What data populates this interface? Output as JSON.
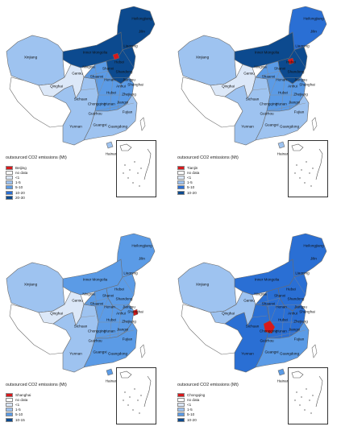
{
  "panels": [
    {
      "id": "beijing",
      "legend_title": "outsourced CO2 emissions (Mt)",
      "legend": [
        {
          "label": "Beijing",
          "color": "#d7191c"
        },
        {
          "label": "no data",
          "color": "#ffffff"
        },
        {
          "label": "<1",
          "color": "#dce8f8"
        },
        {
          "label": "1-5",
          "color": "#9ec3f0"
        },
        {
          "label": "5-10",
          "color": "#5b9be6"
        },
        {
          "label": "10-20",
          "color": "#2a6fd4"
        },
        {
          "label": "20-30",
          "color": "#0c4a8f"
        }
      ],
      "northeast_color": "#0c4a8f",
      "north_color": "#0c4a8f",
      "centre_color": "#5b9be6",
      "south_color": "#9ec3f0",
      "west_color": "#9ec3f0",
      "xinjiang_color": "#9ec3f0",
      "inner_mongolia_color": "#0c4a8f",
      "qinghai_color": "#dce8f8",
      "tibet_color": "#ffffff",
      "highlight": "Beijing"
    },
    {
      "id": "tianjin",
      "legend_title": "outsourced CO2 emissions (Mt)",
      "legend": [
        {
          "label": "Tianjin",
          "color": "#d7191c"
        },
        {
          "label": "no data",
          "color": "#ffffff"
        },
        {
          "label": "<1",
          "color": "#dce8f8"
        },
        {
          "label": "1-5",
          "color": "#9ec3f0"
        },
        {
          "label": "5-10",
          "color": "#2a6fd4"
        },
        {
          "label": "10-20",
          "color": "#0c4a8f"
        }
      ],
      "northeast_color": "#2a6fd4",
      "north_color": "#0c4a8f",
      "centre_color": "#5b9be6",
      "south_color": "#9ec3f0",
      "west_color": "#9ec3f0",
      "xinjiang_color": "#9ec3f0",
      "inner_mongolia_color": "#0c4a8f",
      "qinghai_color": "#dce8f8",
      "tibet_color": "#ffffff",
      "highlight": "Tianjin"
    },
    {
      "id": "shanghai",
      "legend_title": "outsourced CO2 emissions (Mt)",
      "legend": [
        {
          "label": "Shanghai",
          "color": "#d7191c"
        },
        {
          "label": "no data",
          "color": "#ffffff"
        },
        {
          "label": "<1",
          "color": "#dce8f8"
        },
        {
          "label": "1-5",
          "color": "#9ec3f0"
        },
        {
          "label": "5-10",
          "color": "#5b9be6"
        },
        {
          "label": "10-15",
          "color": "#0c4a8f"
        }
      ],
      "northeast_color": "#5b9be6",
      "north_color": "#5b9be6",
      "centre_color": "#5b9be6",
      "south_color": "#5b9be6",
      "west_color": "#9ec3f0",
      "xinjiang_color": "#9ec3f0",
      "inner_mongolia_color": "#5b9be6",
      "qinghai_color": "#dce8f8",
      "tibet_color": "#ffffff",
      "highlight": "Shanghai"
    },
    {
      "id": "chongqing",
      "legend_title": "outsourced CO2 emissions (Mt)",
      "legend": [
        {
          "label": "Chongqing",
          "color": "#d7191c"
        },
        {
          "label": "no data",
          "color": "#ffffff"
        },
        {
          "label": "<1",
          "color": "#dce8f8"
        },
        {
          "label": "1-5",
          "color": "#9ec3f0"
        },
        {
          "label": "5-10",
          "color": "#5b9be6"
        },
        {
          "label": "10-20",
          "color": "#0c4a8f"
        }
      ],
      "northeast_color": "#2a6fd4",
      "north_color": "#2a6fd4",
      "centre_color": "#2a6fd4",
      "south_color": "#5b9be6",
      "west_color": "#2a6fd4",
      "xinjiang_color": "#9ec3f0",
      "inner_mongolia_color": "#2a6fd4",
      "qinghai_color": "#9ec3f0",
      "tibet_color": "#ffffff",
      "highlight": "Chongqing"
    }
  ],
  "province_labels": {
    "heilongjiang": "Heilongjiang",
    "jilin": "Jilin",
    "liaoning": "Liaoning",
    "xinjiang": "Xinjiang",
    "qinghai": "Qinghai",
    "inner_mongolia": "Inner Mongolia",
    "ningxia": "Ningxia",
    "shanxi": "Shanxi",
    "shaanxi": "Shaanxi",
    "shandong": "Shandong",
    "henan": "Henan",
    "jiangsu": "Jiangsu",
    "anhui": "Anhui",
    "shanghai": "Shanghai",
    "sichuan": "Sichuan",
    "chongqing": "Chongqing",
    "hubei": "Hubei",
    "zhejiang": "Zhejiang",
    "hunan": "Hunan",
    "jiangxi": "Jiangxi",
    "guizhou": "Guizhou",
    "fujian": "Fujian",
    "yunnan": "Yunnan",
    "guangxi": "Guangxi",
    "guangdong": "Guangdong",
    "hainan": "Hainan",
    "gansu": "Gansu",
    "hebei": "Hebei"
  }
}
